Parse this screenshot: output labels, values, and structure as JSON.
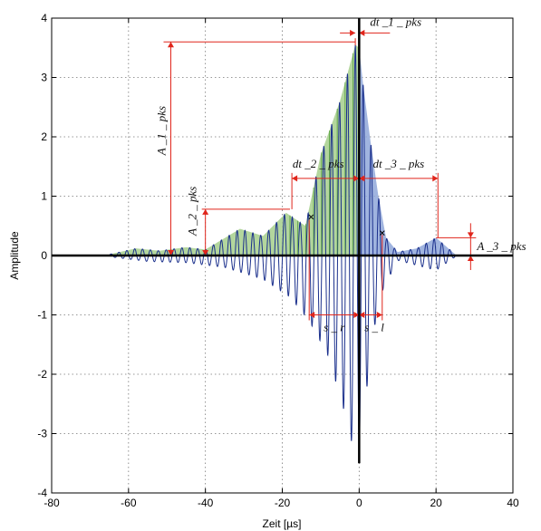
{
  "chart_data": {
    "type": "line",
    "title": "",
    "xlabel": "Zeit [µs]",
    "ylabel": "Amplitude",
    "xlim": [
      -80,
      40
    ],
    "ylim": [
      -4,
      4
    ],
    "xticks": [
      "-80",
      "-60",
      "-40",
      "-20",
      "0",
      "20",
      "40"
    ],
    "yticks": [
      "-4",
      "-3",
      "-2",
      "-1",
      "0",
      "1",
      "2",
      "3",
      "4"
    ],
    "grid": true,
    "signal_range_us": [
      -65,
      25
    ],
    "envelope_left_peaks": [
      {
        "x": -65,
        "y": 0.02
      },
      {
        "x": -58,
        "y": 0.12
      },
      {
        "x": -52,
        "y": 0.08
      },
      {
        "x": -45,
        "y": 0.14
      },
      {
        "x": -40,
        "y": 0.1
      },
      {
        "x": -31,
        "y": 0.45
      },
      {
        "x": -25,
        "y": 0.33
      },
      {
        "x": -19,
        "y": 0.72
      },
      {
        "x": -14,
        "y": 0.5
      },
      {
        "x": -10,
        "y": 1.7
      },
      {
        "x": -5,
        "y": 2.6
      },
      {
        "x": -1,
        "y": 3.55
      },
      {
        "x": 0,
        "y": 3.5
      }
    ],
    "envelope_right_peaks": [
      {
        "x": 0,
        "y": 3.5
      },
      {
        "x": 1,
        "y": 2.9
      },
      {
        "x": 3,
        "y": 1.9
      },
      {
        "x": 5,
        "y": 1.0
      },
      {
        "x": 7,
        "y": 0.3
      },
      {
        "x": 10,
        "y": 0.06
      },
      {
        "x": 15,
        "y": 0.12
      },
      {
        "x": 20,
        "y": 0.3
      },
      {
        "x": 25,
        "y": 0.02
      }
    ],
    "negative_peaks": [
      {
        "x": -65,
        "y": -0.02
      },
      {
        "x": -55,
        "y": -0.1
      },
      {
        "x": -45,
        "y": -0.12
      },
      {
        "x": -35,
        "y": -0.2
      },
      {
        "x": -25,
        "y": -0.4
      },
      {
        "x": -18,
        "y": -0.7
      },
      {
        "x": -13,
        "y": -1.1
      },
      {
        "x": -8,
        "y": -1.7
      },
      {
        "x": -4,
        "y": -2.6
      },
      {
        "x": -1,
        "y": -3.4
      },
      {
        "x": 1,
        "y": -3.0
      },
      {
        "x": 3,
        "y": -1.5
      },
      {
        "x": 6,
        "y": -0.6
      },
      {
        "x": 10,
        "y": -0.08
      },
      {
        "x": 20,
        "y": -0.25
      },
      {
        "x": 25,
        "y": -0.02
      }
    ],
    "markers": [
      {
        "x": -12.5,
        "y": 0.65
      },
      {
        "x": 6,
        "y": 0.38
      }
    ],
    "annotations": {
      "A_1_pks": {
        "label": "A _1 _ pks",
        "x": -49,
        "from": 0,
        "to": 3.6
      },
      "A_2_pks": {
        "label": "A _2 _ pks",
        "x": -40,
        "from": 0,
        "to": 0.78
      },
      "A_3_pks": {
        "label": "A _3 _ pks",
        "x": 29,
        "from": 0,
        "to": 0.3
      },
      "dt_1_pks": {
        "label": "dt _1 _ pks",
        "from": -1,
        "to": 0,
        "y": 3.75
      },
      "dt_2_pks": {
        "label": "dt _2 _ pks",
        "from": -17.5,
        "to": 0,
        "y": 1.3
      },
      "dt_3_pks": {
        "label": "dt _3 _ pks",
        "from": 0,
        "to": 20.5,
        "y": 1.3
      },
      "s_r": {
        "label": "s _ r",
        "from": -13,
        "to": 0,
        "y": -1.0
      },
      "s_l": {
        "label": "s _ l",
        "from": 0,
        "to": 6,
        "y": -1.0
      }
    }
  }
}
